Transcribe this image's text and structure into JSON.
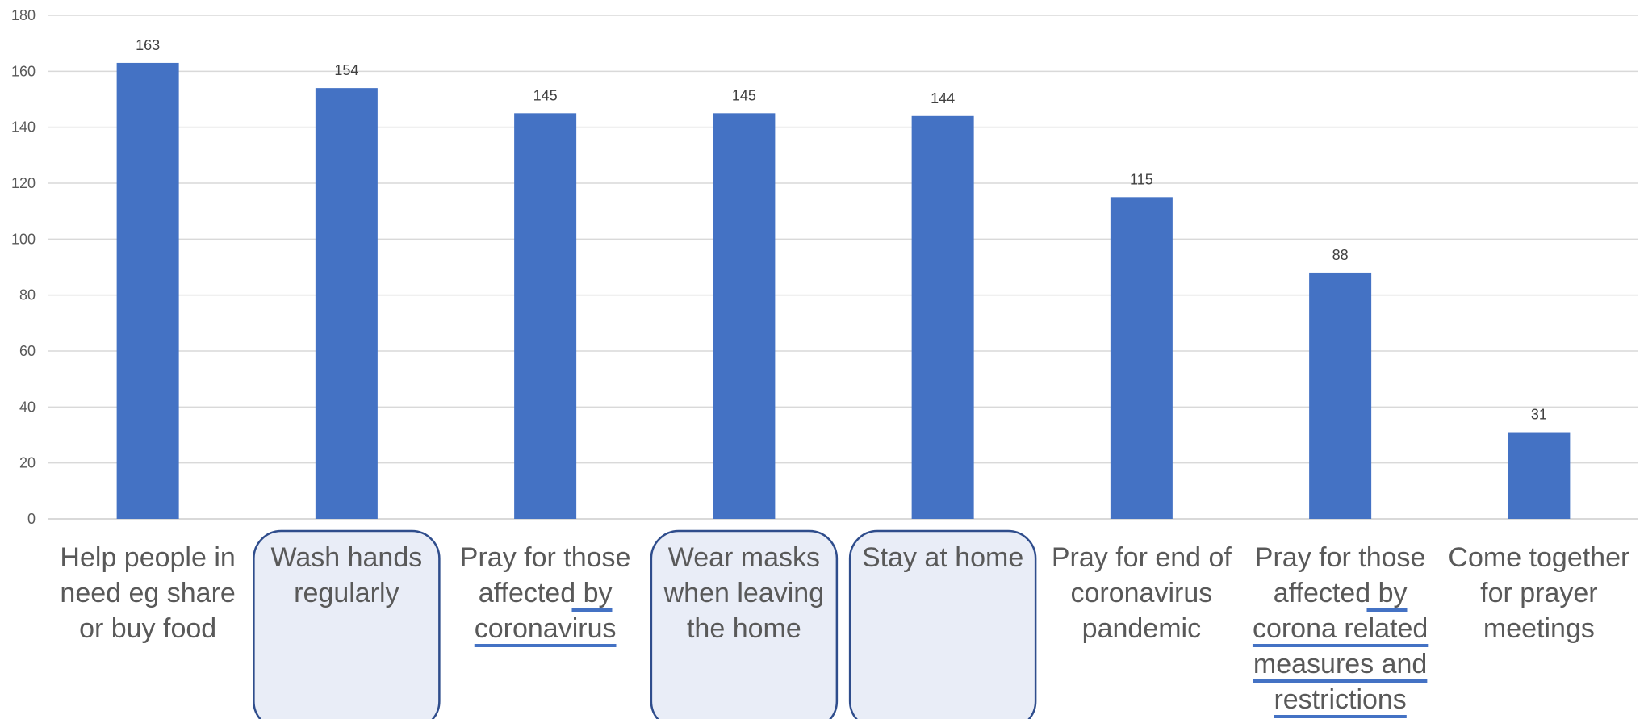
{
  "chart_data": {
    "type": "bar",
    "title": "",
    "xlabel": "",
    "ylabel": "",
    "ylim": [
      0,
      180
    ],
    "yticks": [
      0,
      20,
      40,
      60,
      80,
      100,
      120,
      140,
      160,
      180
    ],
    "grid": true,
    "legend": "none",
    "bar_color": "#4472c4",
    "categories": [
      "Help people in need eg share or buy food",
      "Wash hands regularly",
      "Pray for those affected by coronavirus",
      "Wear masks when leaving the home",
      "Stay at home",
      "Pray for end of coronavirus pandemic",
      "Pray for those affected by corona related measures and restrictions",
      "Come together for prayer meetings"
    ],
    "category_lines": [
      [
        "Help people in",
        "need eg share",
        "or buy food"
      ],
      [
        "Wash hands",
        "regularly"
      ],
      [
        "Pray for those",
        "affected by",
        "coronavirus"
      ],
      [
        "Wear masks",
        "when leaving",
        "the home"
      ],
      [
        "Stay at home"
      ],
      [
        "Pray for end of",
        "coronavirus",
        "pandemic"
      ],
      [
        "Pray for those",
        "affected by",
        "corona related",
        "measures and",
        "restrictions"
      ],
      [
        "Come together",
        "for prayer",
        "meetings"
      ]
    ],
    "highlighted_categories": [
      1,
      3,
      4
    ],
    "underlined_categories": [
      2,
      6
    ],
    "values": [
      163,
      154,
      145,
      145,
      144,
      115,
      88,
      31
    ]
  }
}
